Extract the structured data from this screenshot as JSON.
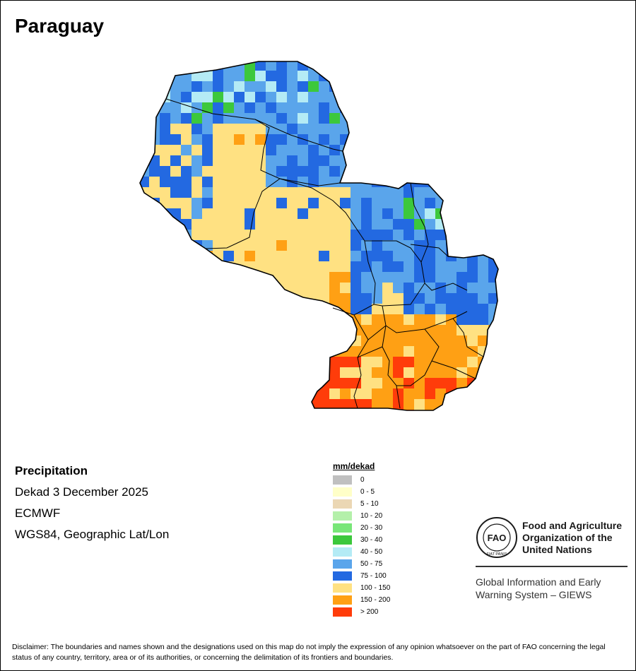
{
  "title": "Paraguay",
  "info": {
    "variable": "Precipitation",
    "period": "Dekad 3 December 2025",
    "model": "ECMWF",
    "projection": "WGS84, Geographic Lat/Lon"
  },
  "legend": {
    "title": "mm/dekad",
    "items": [
      {
        "label": "0",
        "color": "#C0C0C0"
      },
      {
        "label": "0 - 5",
        "color": "#FFFFC8"
      },
      {
        "label": "5 - 10",
        "color": "#EBD7B4"
      },
      {
        "label": "10 - 20",
        "color": "#B4F0AA"
      },
      {
        "label": "20 - 30",
        "color": "#78E678"
      },
      {
        "label": "30 - 40",
        "color": "#3CC83C"
      },
      {
        "label": "40 - 50",
        "color": "#B4EBF5"
      },
      {
        "label": "50 - 75",
        "color": "#5AA5EB"
      },
      {
        "label": "75 - 100",
        "color": "#2369E1"
      },
      {
        "label": "100 - 150",
        "color": "#FFE182"
      },
      {
        "label": "150 - 200",
        "color": "#FFA014"
      },
      {
        "label": "> 200",
        "color": "#FF3C0A"
      }
    ]
  },
  "org": {
    "logo_text": "FAO",
    "logo_motto": "FIAT PANIS",
    "name_lines": [
      "Food and Agriculture",
      "Organization of the",
      "United Nations"
    ],
    "system_lines": [
      "Global Information and Early",
      "Warning System – GIEWS"
    ]
  },
  "disclaimer": "Disclaimer: The boundaries and names shown and the designations used on this map do not imply the expression of any opinion whatsoever on the part of FAO concerning the legal status of any country, territory, area or of its authorities, or concerning the delimitation of its frontiers and boundaries."
}
